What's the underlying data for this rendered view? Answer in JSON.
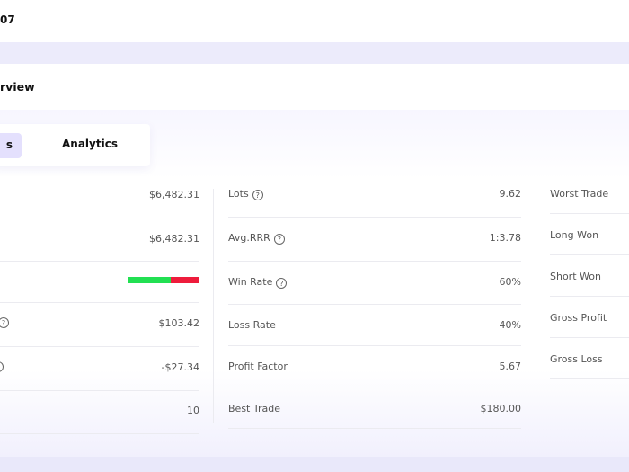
{
  "topbar": {
    "title_fragment": "07"
  },
  "header": {
    "title_fragment": "rview"
  },
  "tabs": [
    {
      "label": "s",
      "active": true
    },
    {
      "label": "Analytics",
      "active": false
    }
  ],
  "left_column": [
    {
      "value": "$6,482.31"
    },
    {
      "value": "$6,482.31"
    },
    {
      "win_loss_bar": {
        "win_fraction": 0.6,
        "win_color": "#22e052",
        "loss_color": "#ee1c3c"
      }
    },
    {
      "value": "$103.42",
      "help_icon": true
    },
    {
      "value": "-$27.34",
      "help_icon": true
    },
    {
      "value": "10"
    }
  ],
  "middle_column": [
    {
      "label": "Lots",
      "value": "9.62",
      "help_icon": true
    },
    {
      "label": "Avg.RRR",
      "value": "1:3.78",
      "help_icon": true
    },
    {
      "label": "Win Rate",
      "value": "60%",
      "help_icon": true
    },
    {
      "label": "Loss Rate",
      "value": "40%"
    },
    {
      "label": "Profit Factor",
      "value": "5.67"
    },
    {
      "label": "Best Trade",
      "value": "$180.00"
    }
  ],
  "right_column": [
    {
      "label": "Worst Trade"
    },
    {
      "label": "Long Won"
    },
    {
      "label": "Short Won"
    },
    {
      "label": "Gross Profit"
    },
    {
      "label": "Gross Loss"
    }
  ]
}
